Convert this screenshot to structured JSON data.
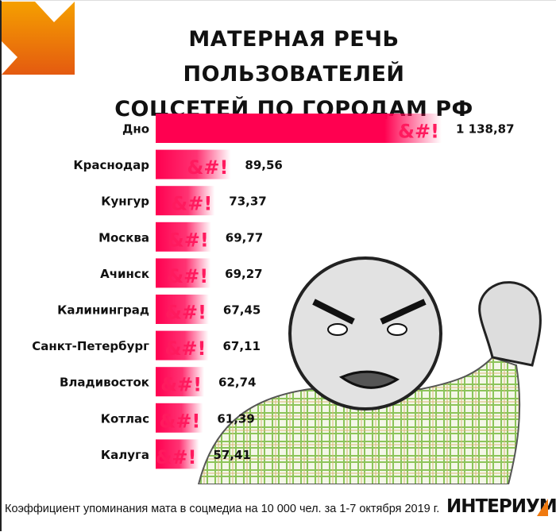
{
  "title_lines": [
    "МАТЕРНАЯ РЕЧЬ ПОЛЬЗОВАТЕЛЕЙ",
    "СОЦСЕТЕЙ ПО ГОРОДАМ РФ"
  ],
  "colors": {
    "bar": "#ff0050",
    "accent_orange": "#f07a10",
    "text": "#111111"
  },
  "bar_symbol": "&#!",
  "chart_data": {
    "type": "bar",
    "orientation": "horizontal",
    "title": "МАТЕРНАЯ РЕЧЬ ПОЛЬЗОВАТЕЛЕЙ СОЦСЕТЕЙ ПО ГОРОДАМ РФ",
    "categories": [
      "Дно",
      "Краснодар",
      "Кунгур",
      "Москва",
      "Ачинск",
      "Калининград",
      "Санкт-Петербург",
      "Владивосток",
      "Котлас",
      "Калуга"
    ],
    "values": [
      1138.87,
      89.56,
      73.37,
      69.77,
      69.27,
      67.45,
      67.11,
      62.74,
      61.39,
      57.41
    ],
    "value_labels": [
      "1 138,87",
      "89,56",
      "73,37",
      "69,77",
      "69,27",
      "67,45",
      "67,11",
      "62,74",
      "61,39",
      "57,41"
    ],
    "grid": false,
    "xlabel": "",
    "ylabel": ""
  },
  "footer": {
    "note": "Коэффициент упоминания мата в соцмедиа на 10 000 чел. за 1-7 октября 2019 г.",
    "logo": "ИНТЕРИУМ"
  }
}
